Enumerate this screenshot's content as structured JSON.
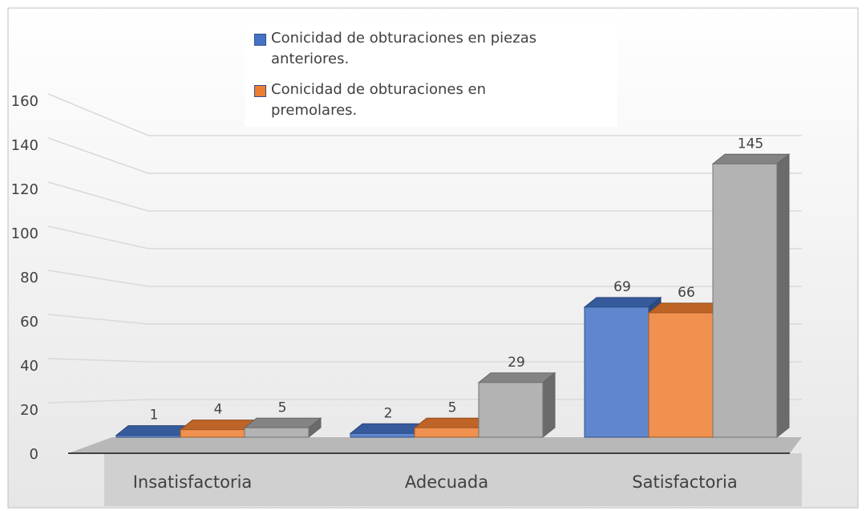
{
  "chart_data": {
    "type": "bar3d",
    "categories": [
      "Insatisfactoria",
      "Adecuada",
      "Satisfactoria"
    ],
    "series": [
      {
        "name": "Conicidad de obturaciones en piezas anteriores.",
        "color": "#4472c4",
        "values": [
          1,
          2,
          69
        ]
      },
      {
        "name": "Conicidad de obturaciones en premolares.",
        "color": "#ed7d31",
        "values": [
          4,
          5,
          66
        ]
      },
      {
        "color": "#a5a5a5",
        "values": [
          5,
          29,
          145
        ]
      }
    ],
    "ylim": [
      0,
      160
    ],
    "yticks": [
      0,
      20,
      40,
      60,
      80,
      100,
      120,
      140,
      160
    ],
    "grid": true,
    "legend": "top"
  }
}
